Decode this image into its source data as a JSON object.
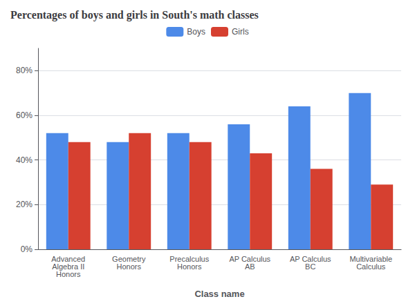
{
  "chart_data": {
    "type": "bar",
    "title": "Percentages of boys and girls in South's math classes",
    "xlabel": "Class name",
    "categories": [
      "Advanced\nAlgebra II\nHonors",
      "Geometry\nHonors",
      "Precalculus\nHonors",
      "AP Calculus\nAB",
      "AP Calculus\nBC",
      "Multivariable\nCalculus"
    ],
    "series": [
      {
        "name": "Boys",
        "color": "#4D8AE8",
        "values": [
          52,
          48,
          52,
          56,
          64,
          70
        ]
      },
      {
        "name": "Girls",
        "color": "#D64030",
        "values": [
          48,
          52,
          48,
          43,
          36,
          29
        ]
      }
    ],
    "ylim": [
      0,
      90
    ],
    "yticks": [
      {
        "value": 0,
        "label": "0%"
      },
      {
        "value": 20,
        "label": "20%"
      },
      {
        "value": 40,
        "label": "40%"
      },
      {
        "value": 60,
        "label": "60%"
      },
      {
        "value": 80,
        "label": "80%"
      }
    ],
    "grid": true,
    "legend": "top"
  }
}
